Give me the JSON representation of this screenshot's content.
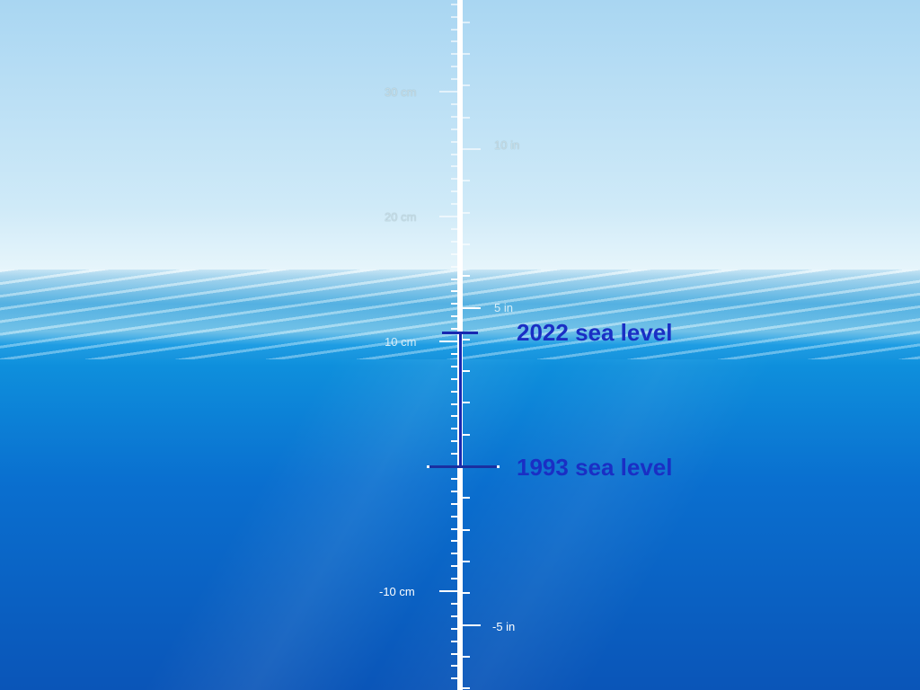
{
  "scale": {
    "cm_labels": [
      "30 cm",
      "20 cm",
      "10 cm",
      "-10 cm"
    ],
    "in_labels": [
      "10 in",
      "5 in",
      "-5 in"
    ]
  },
  "markers": {
    "current": {
      "label": "2022 sea level",
      "value_cm": 10.7
    },
    "baseline": {
      "label": "1993 sea level",
      "value_cm": 0
    }
  },
  "colors": {
    "marker": "#1a2fc4",
    "ruler": "#ffffff"
  }
}
